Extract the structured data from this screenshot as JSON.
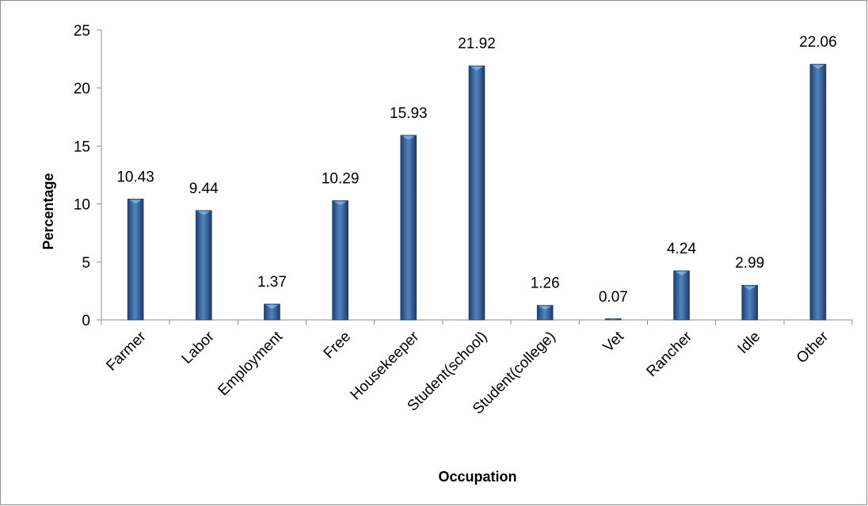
{
  "chart_data": {
    "type": "bar",
    "title": "",
    "xlabel": "Occupation",
    "ylabel": "Percentage",
    "categories": [
      "Farmer",
      "Labor",
      "Employment",
      "Free",
      "Housekeeper",
      "Student(school)",
      "Student(college)",
      "Vet",
      "Rancher",
      "Idle",
      "Other"
    ],
    "values": [
      10.43,
      9.44,
      1.37,
      10.29,
      15.93,
      21.92,
      1.26,
      0.07,
      4.24,
      2.99,
      22.06
    ],
    "data_labels": [
      "10.43",
      "9.44",
      "1.37",
      "10.29",
      "15.93",
      "21.92",
      "1.26",
      "0.07",
      "4.24",
      "2.99",
      "22.06"
    ],
    "ylim": [
      0,
      25
    ],
    "yticks": [
      "0",
      "5",
      "10",
      "15",
      "20",
      "25"
    ],
    "grid": false,
    "legend": "none",
    "colors": {
      "bar_light": "#4f81bd",
      "bar_dark": "#1f3f6e",
      "bar_edge": "#17375e",
      "axis": "#8c8c8c",
      "frame": "#8c8c8c"
    }
  }
}
